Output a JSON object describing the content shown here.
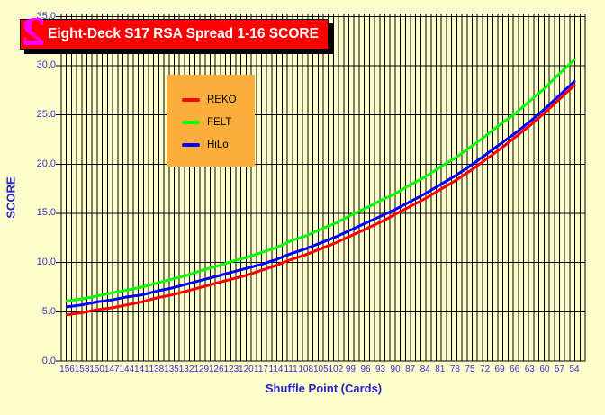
{
  "title_bar": {
    "text": "Eight-Deck S17 RSA Spread 1-16 SCORE",
    "icon": "magenta-2-logo",
    "bg_color": "#FF0000",
    "text_color": "#FFFFFF",
    "icon_color": "#FF00FF",
    "icon_glyph": "2"
  },
  "colors": {
    "page_bg": "#FFFFCC",
    "grid": "#000000",
    "tick_label": "#3333CC",
    "axis_title": "#2222CC",
    "legend_bg": "#FBAE3C"
  },
  "chart_data": {
    "type": "line",
    "title": "Eight-Deck S17 RSA Spread 1-16 SCORE",
    "xlabel": "Shuffle Point (Cards)",
    "ylabel": "SCORE",
    "x_categories": [
      "156",
      "153",
      "150",
      "147",
      "144",
      "141",
      "138",
      "135",
      "132",
      "129",
      "126",
      "123",
      "120",
      "117",
      "114",
      "111",
      "108",
      "105",
      "102",
      "99",
      "96",
      "93",
      "90",
      "87",
      "84",
      "81",
      "78",
      "75",
      "72",
      "69",
      "66",
      "63",
      "60",
      "57",
      "54"
    ],
    "yticks": [
      0,
      5,
      10,
      15,
      20,
      25,
      30,
      35
    ],
    "ytick_labels": [
      "0.0",
      "5.0",
      "10.0",
      "15.0",
      "20.0",
      "25.0",
      "30.0",
      "35.0"
    ],
    "ylim": [
      0,
      35.3
    ],
    "grid": "both",
    "grid_note": "vertical gridline at every card (103 lines), horizontal every 5.0",
    "legend_position": "upper-left-inside",
    "series": [
      {
        "name": "REKO",
        "color": "#FF0000",
        "values": [
          4.7,
          4.9,
          5.2,
          5.4,
          5.7,
          6.0,
          6.4,
          6.7,
          7.1,
          7.5,
          7.9,
          8.3,
          8.7,
          9.2,
          9.7,
          10.3,
          10.8,
          11.4,
          12.0,
          12.7,
          13.4,
          14.1,
          14.9,
          15.7,
          16.5,
          17.4,
          18.3,
          19.3,
          20.4,
          21.5,
          22.7,
          23.9,
          25.2,
          26.6,
          28.0
        ]
      },
      {
        "name": "FELT",
        "color": "#00FF00",
        "values": [
          6.1,
          6.3,
          6.6,
          6.9,
          7.2,
          7.5,
          7.9,
          8.3,
          8.7,
          9.2,
          9.6,
          10.1,
          10.5,
          11.0,
          11.5,
          12.2,
          12.7,
          13.4,
          14.0,
          14.8,
          15.5,
          16.3,
          17.0,
          17.9,
          18.7,
          19.7,
          20.6,
          21.7,
          22.8,
          24.0,
          25.1,
          26.4,
          27.7,
          29.2,
          30.6
        ]
      },
      {
        "name": "HiLo",
        "color": "#0000FF",
        "values": [
          5.5,
          5.7,
          6.0,
          6.2,
          6.5,
          6.7,
          7.1,
          7.4,
          7.8,
          8.2,
          8.6,
          9.0,
          9.4,
          9.8,
          10.3,
          10.9,
          11.4,
          12.0,
          12.6,
          13.3,
          14.0,
          14.7,
          15.4,
          16.2,
          17.0,
          17.9,
          18.8,
          19.8,
          20.9,
          22.0,
          23.1,
          24.3,
          25.6,
          27.0,
          28.4
        ]
      }
    ]
  }
}
